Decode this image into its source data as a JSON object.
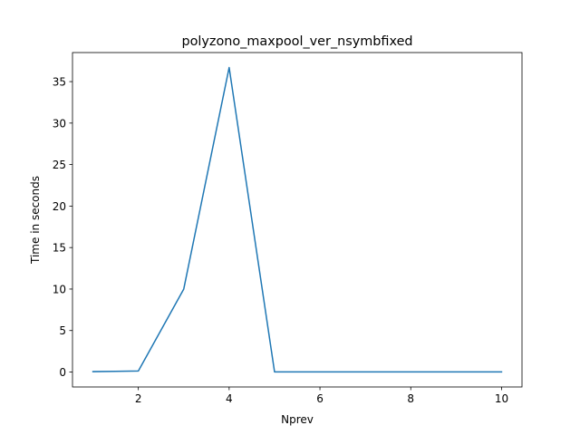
{
  "chart_data": {
    "type": "line",
    "title": "polyzono_maxpool_ver_nsymbfixed",
    "xlabel": "Nprev",
    "ylabel": "Time in seconds",
    "xlim": [
      0.55,
      10.45
    ],
    "ylim": [
      -1.8,
      38.5
    ],
    "xticks": [
      2,
      4,
      6,
      8,
      10
    ],
    "yticks": [
      0,
      5,
      10,
      15,
      20,
      25,
      30,
      35
    ],
    "grid": false,
    "series": [
      {
        "color": "#1f77b4",
        "x": [
          1,
          2,
          3,
          4,
          5,
          6,
          7,
          8,
          9,
          10
        ],
        "y": [
          0.05,
          0.12,
          10.0,
          36.7,
          0.02,
          0.02,
          0.02,
          0.02,
          0.02,
          0.02
        ]
      }
    ]
  }
}
